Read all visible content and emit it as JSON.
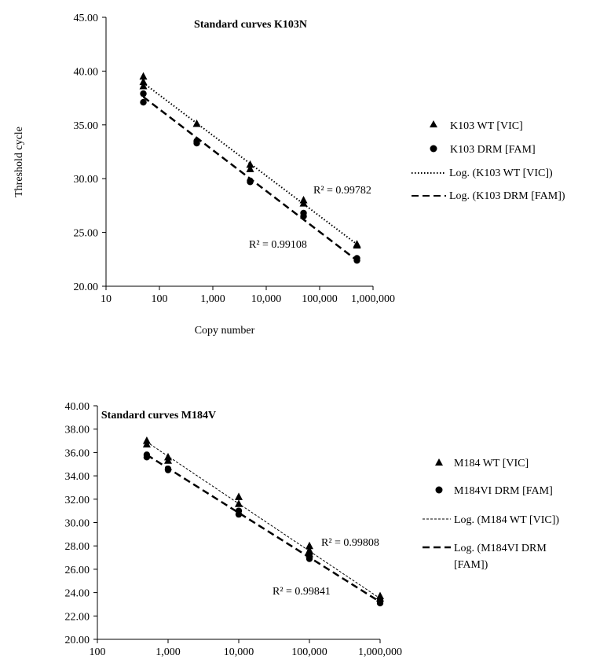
{
  "chart_data": [
    {
      "type": "scatter",
      "xscale": "log",
      "title": "Standard curves K103N",
      "xlabel": "Copy number",
      "ylabel": "Threshold cycle",
      "xlim": [
        10,
        1000000
      ],
      "ylim": [
        20,
        45
      ],
      "x_ticks": [
        10,
        100,
        1000,
        10000,
        100000,
        1000000
      ],
      "x_tick_labels": [
        "10",
        "100",
        "1,000",
        "10,000",
        "100,000",
        "1,000,000"
      ],
      "y_ticks": [
        20,
        25,
        30,
        35,
        40,
        45
      ],
      "y_tick_labels": [
        "20.00",
        "25.00",
        "30.00",
        "35.00",
        "40.00",
        "45.00"
      ],
      "legend_position": "right",
      "series": [
        {
          "name": "K103 WT [VIC]",
          "marker": "triangle",
          "points": [
            [
              50,
              39.5
            ],
            [
              50,
              39.0
            ],
            [
              50,
              38.6
            ],
            [
              500,
              35.1
            ],
            [
              5000,
              31.3
            ],
            [
              5000,
              30.9
            ],
            [
              50000,
              28.0
            ],
            [
              50000,
              27.7
            ],
            [
              500000,
              23.9
            ],
            [
              500000,
              23.8
            ]
          ]
        },
        {
          "name": "K103 DRM [FAM]",
          "marker": "circle",
          "points": [
            [
              50,
              37.9
            ],
            [
              50,
              37.1
            ],
            [
              500,
              33.5
            ],
            [
              500,
              33.3
            ],
            [
              5000,
              29.8
            ],
            [
              5000,
              29.7
            ],
            [
              50000,
              26.8
            ],
            [
              50000,
              26.5
            ],
            [
              500000,
              22.6
            ],
            [
              500000,
              22.4
            ]
          ]
        }
      ],
      "trendlines": [
        {
          "name": "Log. (K103 WT [VIC])",
          "style": "dotted",
          "x_range": [
            50,
            500000
          ],
          "y_at_start": 38.9,
          "y_at_end": 23.9
        },
        {
          "name": "Log. (K103 DRM [FAM])",
          "style": "dashed",
          "x_range": [
            50,
            500000
          ],
          "y_at_start": 37.6,
          "y_at_end": 22.4
        }
      ],
      "annotations": [
        {
          "text": "R² = 0.99782",
          "series": "K103 WT [VIC]"
        },
        {
          "text": "R² = 0.99108",
          "series": "K103 DRM [FAM]"
        }
      ]
    },
    {
      "type": "scatter",
      "xscale": "log",
      "title": "Standard curves M184V",
      "xlabel": "",
      "ylabel": "",
      "xlim": [
        100,
        1000000
      ],
      "ylim": [
        20,
        40
      ],
      "x_ticks": [
        100,
        1000,
        10000,
        100000,
        1000000
      ],
      "x_tick_labels": [
        "100",
        "1,000",
        "10,000",
        "100,000",
        "1,000,000"
      ],
      "y_ticks": [
        20,
        22,
        24,
        26,
        28,
        30,
        32,
        34,
        36,
        38,
        40
      ],
      "y_tick_labels": [
        "20.00",
        "22.00",
        "24.00",
        "26.00",
        "28.00",
        "30.00",
        "32.00",
        "34.00",
        "36.00",
        "38.00",
        "40.00"
      ],
      "legend_position": "right",
      "series": [
        {
          "name": "M184 WT [VIC]",
          "marker": "triangle",
          "points": [
            [
              500,
              37.0
            ],
            [
              500,
              36.7
            ],
            [
              1000,
              35.6
            ],
            [
              1000,
              35.3
            ],
            [
              10000,
              32.2
            ],
            [
              10000,
              31.6
            ],
            [
              100000,
              28.0
            ],
            [
              100000,
              27.6
            ],
            [
              100000,
              27.3
            ],
            [
              1000000,
              23.7
            ],
            [
              1000000,
              23.5
            ]
          ]
        },
        {
          "name": "M184VI DRM [FAM]",
          "marker": "circle",
          "points": [
            [
              500,
              35.8
            ],
            [
              500,
              35.6
            ],
            [
              1000,
              34.6
            ],
            [
              1000,
              34.5
            ],
            [
              10000,
              31.0
            ],
            [
              10000,
              30.7
            ],
            [
              100000,
              27.3
            ],
            [
              100000,
              26.9
            ],
            [
              1000000,
              23.3
            ],
            [
              1000000,
              23.1
            ]
          ]
        }
      ],
      "trendlines": [
        {
          "name": "Log. (M184 WT [VIC])",
          "style": "fine-dashed",
          "x_range": [
            500,
            1000000
          ],
          "y_at_start": 36.9,
          "y_at_end": 23.5
        },
        {
          "name": "Log. (M184VI DRM [FAM])",
          "style": "dashed",
          "x_range": [
            500,
            1000000
          ],
          "y_at_start": 35.8,
          "y_at_end": 23.2
        }
      ],
      "annotations": [
        {
          "text": "R² = 0.99808",
          "series": "M184 WT [VIC]"
        },
        {
          "text": "R² = 0.99841",
          "series": "M184VI DRM [FAM]"
        }
      ]
    }
  ],
  "legends": [
    [
      "K103 WT [VIC]",
      "K103 DRM [FAM]",
      "Log. (K103 WT [VIC])",
      "Log. (K103 DRM [FAM])"
    ],
    [
      "M184 WT [VIC]",
      "M184VI DRM [FAM]",
      "Log. (M184 WT [VIC])",
      "Log. (M184VI DRM",
      "[FAM])"
    ]
  ]
}
